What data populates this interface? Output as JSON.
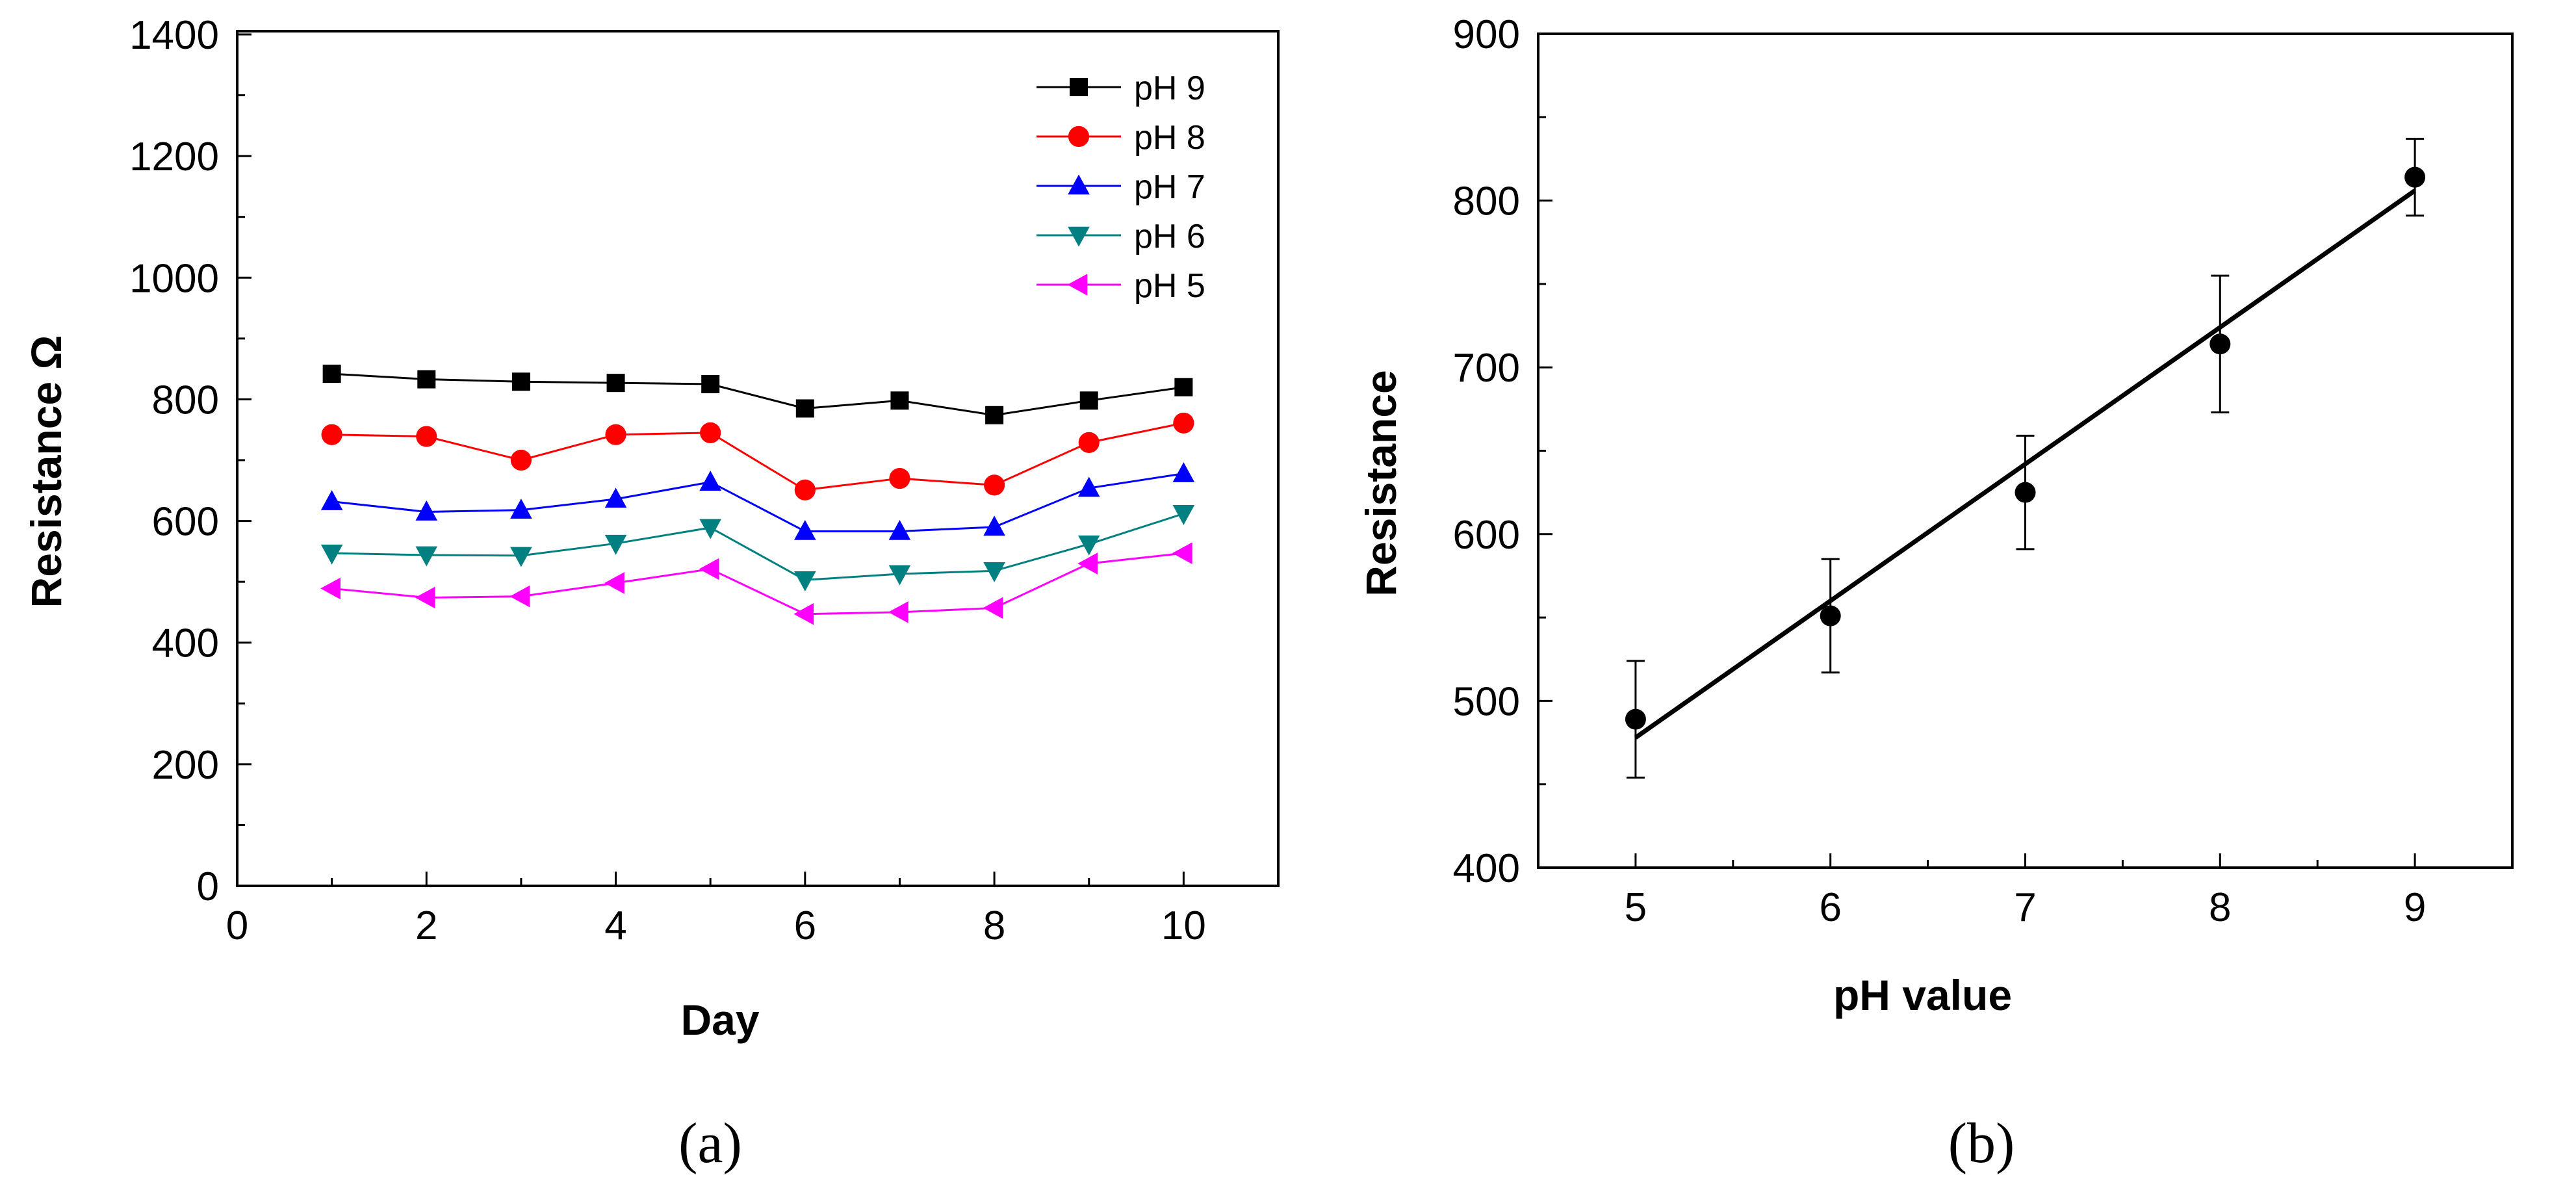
{
  "chart_data": [
    {
      "type": "line",
      "panel_label": "(a)",
      "xlabel": "Day",
      "ylabel": "Resistance Ω",
      "xlim": [
        0,
        11
      ],
      "ylim": [
        0,
        1400
      ],
      "xticks": [
        0,
        2,
        4,
        6,
        8,
        10
      ],
      "yticks": [
        0,
        200,
        400,
        600,
        800,
        1000,
        1200,
        1400
      ],
      "legend_position": "top-right",
      "x": [
        1,
        2,
        3,
        4,
        5,
        6,
        7,
        8,
        9,
        10
      ],
      "series": [
        {
          "name": "pH 9",
          "marker": "square",
          "color": "#000000",
          "values": [
            842,
            833,
            829,
            827,
            825,
            785,
            798,
            774,
            798,
            820
          ]
        },
        {
          "name": "pH 8",
          "marker": "circle",
          "color": "#ff0000",
          "values": [
            742,
            739,
            700,
            742,
            745,
            651,
            670,
            659,
            729,
            761
          ]
        },
        {
          "name": "pH 7",
          "marker": "triangle-up",
          "color": "#0000ff",
          "values": [
            632,
            615,
            618,
            636,
            664,
            583,
            583,
            590,
            654,
            678
          ]
        },
        {
          "name": "pH 6",
          "marker": "triangle-down",
          "color": "#008080",
          "values": [
            547,
            544,
            543,
            563,
            589,
            503,
            513,
            518,
            562,
            612
          ]
        },
        {
          "name": "pH 5",
          "marker": "triangle-left",
          "color": "#ff00ff",
          "values": [
            489,
            474,
            476,
            498,
            521,
            447,
            450,
            457,
            530,
            547
          ]
        }
      ]
    },
    {
      "type": "scatter",
      "panel_label": "(b)",
      "xlabel": "pH value",
      "ylabel": "Resistance",
      "xlim": [
        4.5,
        9.5
      ],
      "ylim": [
        400,
        900
      ],
      "xticks": [
        5,
        6,
        7,
        8,
        9
      ],
      "yticks": [
        400,
        500,
        600,
        700,
        800,
        900
      ],
      "x": [
        5,
        6,
        7,
        8,
        9
      ],
      "values": [
        489,
        551,
        625,
        714,
        814
      ],
      "error": [
        35,
        34,
        34,
        41,
        23
      ],
      "fit_line": {
        "x": [
          5,
          9
        ],
        "y": [
          478,
          806
        ]
      }
    }
  ]
}
